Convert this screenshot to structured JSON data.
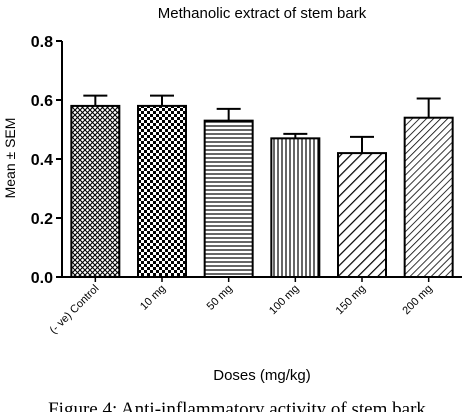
{
  "chart_data": {
    "type": "bar",
    "title": "Methanolic extract of stem bark",
    "xlabel": "Doses (mg/kg)",
    "ylabel": "Mean ± SEM",
    "ylim": [
      0.0,
      0.8
    ],
    "yticks": [
      "0.0",
      "0.2",
      "0.4",
      "0.6",
      "0.8"
    ],
    "categories": [
      "(- ve) Control",
      "10 mg",
      "50 mg",
      "100 mg",
      "150 mg",
      "200 mg"
    ],
    "values": [
      0.58,
      0.58,
      0.53,
      0.47,
      0.42,
      0.54
    ],
    "errors": [
      0.035,
      0.035,
      0.04,
      0.015,
      0.055,
      0.065
    ],
    "patterns": [
      "crosshatch",
      "checker",
      "horizontal-lines",
      "vertical-lines",
      "diagonal-lines",
      "dense-diagonal-lines"
    ],
    "grid": false,
    "legend": "none"
  },
  "caption": "Figure 4: Anti-inflammatory activity of stem bark"
}
